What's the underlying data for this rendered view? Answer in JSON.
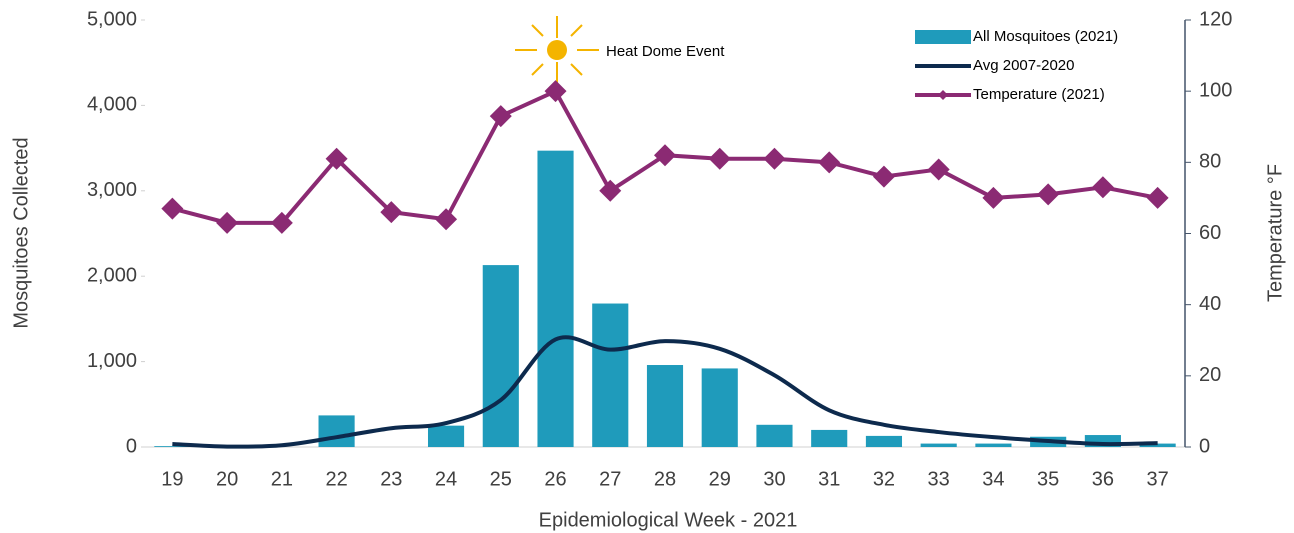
{
  "chart_data": {
    "type": "combo",
    "x_label": "Epidemiological Week - 2021",
    "y_label": "Mosquitoes Collected",
    "y2_label": "Temperature °F",
    "annotation": "Heat Dome Event",
    "categories": [
      "19",
      "20",
      "21",
      "22",
      "23",
      "24",
      "25",
      "26",
      "27",
      "28",
      "29",
      "30",
      "31",
      "32",
      "33",
      "34",
      "35",
      "36",
      "37"
    ],
    "series": [
      {
        "name": "All Mosquitoes (2021)",
        "type": "bar",
        "color": "#1f9bbb",
        "values": [
          10,
          0,
          0,
          370,
          0,
          250,
          2130,
          3470,
          1680,
          960,
          920,
          260,
          200,
          130,
          40,
          40,
          120,
          140,
          40
        ]
      },
      {
        "name": "Avg 2007-2020",
        "type": "line",
        "smooth": true,
        "color": "#0d2a4d",
        "values": [
          35,
          5,
          20,
          115,
          220,
          280,
          550,
          1260,
          1140,
          1240,
          1150,
          840,
          430,
          260,
          175,
          115,
          70,
          35,
          45
        ]
      },
      {
        "name": "Temperature (2021)",
        "type": "line",
        "marker": "diamond",
        "axis": "y2",
        "color": "#8b2a73",
        "values": [
          67,
          63,
          63,
          81,
          66,
          64,
          93,
          100,
          72,
          82,
          81,
          81,
          80,
          76,
          78,
          70,
          71,
          73,
          70
        ]
      }
    ],
    "ylim": [
      0,
      5000
    ],
    "yticks": [
      0,
      {
        "value": 1000,
        "label": "1,000"
      },
      {
        "value": 2000,
        "label": "2,000"
      },
      {
        "value": 3000,
        "label": "3,000"
      },
      {
        "value": 4000,
        "label": "4,000"
      },
      {
        "value": 5000,
        "label": "5,000"
      }
    ],
    "y2lim": [
      0,
      120
    ],
    "y2ticks": [
      0,
      20,
      40,
      60,
      80,
      100,
      120
    ],
    "legend": "upper right"
  }
}
